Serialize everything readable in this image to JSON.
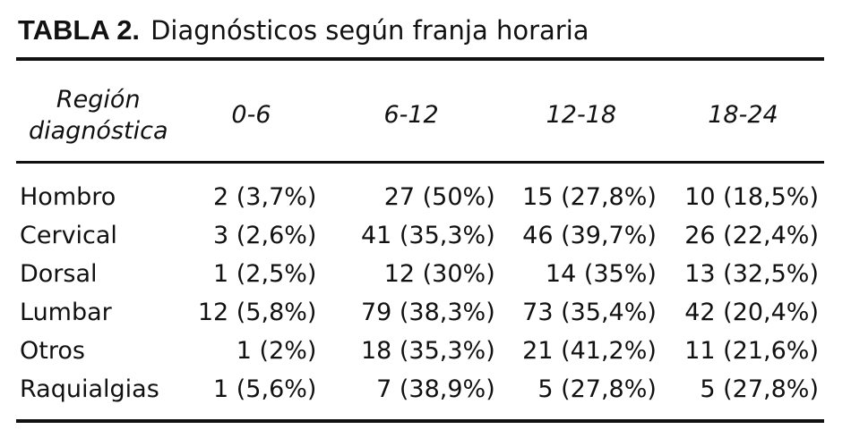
{
  "header": {
    "label": "TABLA 2.",
    "title": "Diagnósticos según franja horaria"
  },
  "table": {
    "columns": [
      "Región diagnóstica",
      "0-6",
      "6-12",
      "12-18",
      "18-24"
    ],
    "rows": [
      [
        "Hombro",
        "2 (3,7%)",
        "27 (50%)",
        "15 (27,8%)",
        "10 (18,5%)"
      ],
      [
        "Cervical",
        "3 (2,6%)",
        "41 (35,3%)",
        "46 (39,7%)",
        "26 (22,4%)"
      ],
      [
        "Dorsal",
        "1 (2,5%)",
        "12 (30%)",
        "14 (35%)",
        "13 (32,5%)"
      ],
      [
        "Lumbar",
        "12 (5,8%)",
        "79 (38,3%)",
        "73 (35,4%)",
        "42 (20,4%)"
      ],
      [
        "Otros",
        "1 (2%)",
        "18 (35,3%)",
        "21 (41,2%)",
        "11 (21,6%)"
      ],
      [
        "Raquialgias",
        "1 (5,6%)",
        "7 (38,9%)",
        "5 (27,8%)",
        "5 (27,8%)"
      ]
    ]
  }
}
